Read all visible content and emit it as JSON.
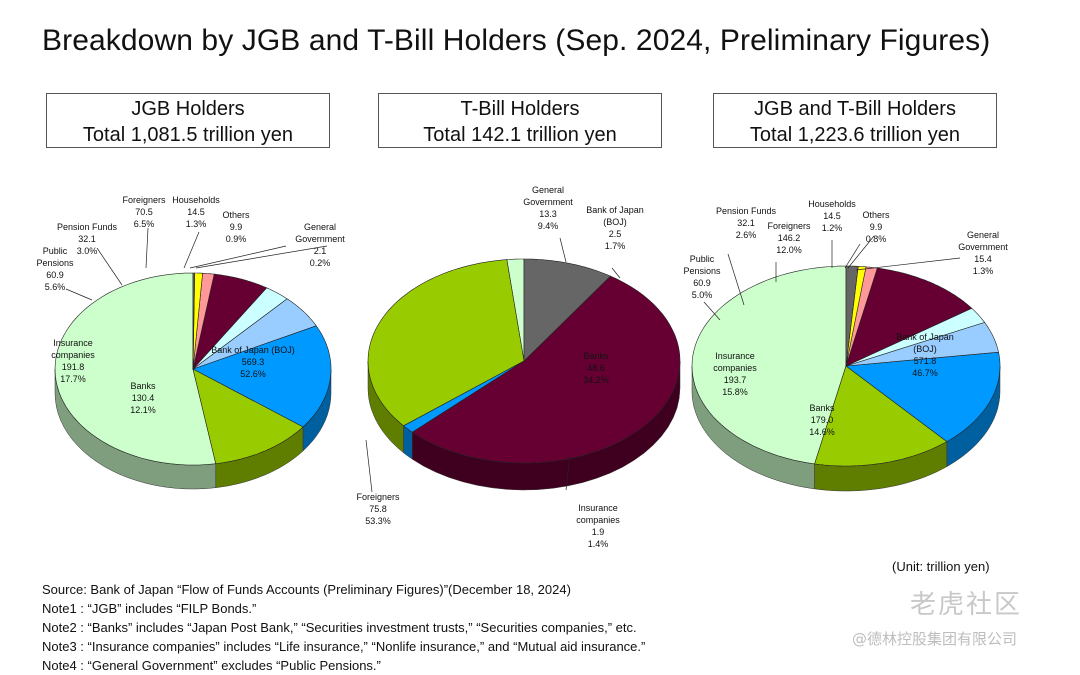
{
  "title": "Breakdown by JGB and T-Bill Holders (Sep. 2024, Preliminary Figures)",
  "boxes": [
    {
      "line1": "JGB Holders",
      "line2": "Total 1,081.5 trillion yen"
    },
    {
      "line1": "T-Bill Holders",
      "line2": "Total 142.1 trillion yen"
    },
    {
      "line1": "JGB and T-Bill Holders",
      "line2": "Total 1,223.6 trillion yen"
    }
  ],
  "unit": "(Unit: trillion yen)",
  "notes": [
    "Source: Bank of Japan “Flow of Funds Accounts (Preliminary Figures)”(December 18, 2024)",
    "Note1 : “JGB” includes “FILP Bonds.”",
    "Note2 : “Banks” includes “Japan Post Bank,” “Securities investment trusts,” “Securities companies,” etc.",
    "Note3 : “Insurance companies” includes “Life insurance,” “Nonlife insurance,” and “Mutual aid insurance.”",
    "Note4 : “General Government” excludes “Public Pensions.”"
  ],
  "watermark": {
    "brand": "老虎社区",
    "handle": "@德林控股集团有限公司"
  },
  "colors": {
    "boj": "#ccffcc",
    "banks": "#99cc00",
    "insurance": "#0099ff",
    "public_pensions": "#99ccff",
    "pension_funds": "#ccffff",
    "foreigners": "#660033",
    "households": "#ff9999",
    "others": "#ffff00",
    "general_government": "#666666"
  },
  "chart_data": [
    {
      "type": "pie",
      "title": "JGB Holders",
      "total": "1,081.5",
      "slices": [
        {
          "key": "boj",
          "lines": [
            "Bank of Japan (BOJ)",
            "569.3",
            "52.6%"
          ],
          "value": 569.3,
          "percent": 52.6
        },
        {
          "key": "banks",
          "lines": [
            "Banks",
            "130.4",
            "12.1%"
          ],
          "value": 130.4,
          "percent": 12.1
        },
        {
          "key": "insurance",
          "lines": [
            "Insurance",
            "companies",
            "191.8",
            "17.7%"
          ],
          "value": 191.8,
          "percent": 17.7
        },
        {
          "key": "public_pensions",
          "lines": [
            "Public",
            "Pensions",
            "60.9",
            "5.6%"
          ],
          "value": 60.9,
          "percent": 5.6
        },
        {
          "key": "pension_funds",
          "lines": [
            "Pension Funds",
            "32.1",
            "3.0%"
          ],
          "value": 32.1,
          "percent": 3.0
        },
        {
          "key": "foreigners",
          "lines": [
            "Foreigners",
            "70.5",
            "6.5%"
          ],
          "value": 70.5,
          "percent": 6.5
        },
        {
          "key": "households",
          "lines": [
            "Households",
            "14.5",
            "1.3%"
          ],
          "value": 14.5,
          "percent": 1.3
        },
        {
          "key": "others",
          "lines": [
            "Others",
            "9.9",
            "0.9%"
          ],
          "value": 9.9,
          "percent": 0.9
        },
        {
          "key": "general_government",
          "lines": [
            "General",
            "Government",
            "2.1",
            "0.2%"
          ],
          "value": 2.1,
          "percent": 0.2
        }
      ]
    },
    {
      "type": "pie",
      "title": "T-Bill Holders",
      "total": "142.1",
      "slices": [
        {
          "key": "boj",
          "lines": [
            "Bank of Japan",
            "(BOJ)",
            "2.5",
            "1.7%"
          ],
          "value": 2.5,
          "percent": 1.7
        },
        {
          "key": "banks",
          "lines": [
            "Banks",
            "48.6",
            "34.2%"
          ],
          "value": 48.6,
          "percent": 34.2
        },
        {
          "key": "insurance",
          "lines": [
            "Insurance",
            "companies",
            "1.9",
            "1.4%"
          ],
          "value": 1.9,
          "percent": 1.4
        },
        {
          "key": "foreigners",
          "lines": [
            "Foreigners",
            "75.8",
            "53.3%"
          ],
          "value": 75.8,
          "percent": 53.3
        },
        {
          "key": "general_government",
          "lines": [
            "General",
            "Government",
            "13.3",
            "9.4%"
          ],
          "value": 13.3,
          "percent": 9.4
        }
      ]
    },
    {
      "type": "pie",
      "title": "JGB and T-Bill Holders",
      "total": "1,223.6",
      "slices": [
        {
          "key": "boj",
          "lines": [
            "Bank of Japan",
            "(BOJ)",
            "571.8",
            "46.7%"
          ],
          "value": 571.8,
          "percent": 46.7
        },
        {
          "key": "banks",
          "lines": [
            "Banks",
            "179.0",
            "14.6%"
          ],
          "value": 179.0,
          "percent": 14.6
        },
        {
          "key": "insurance",
          "lines": [
            "Insurance",
            "companies",
            "193.7",
            "15.8%"
          ],
          "value": 193.7,
          "percent": 15.8
        },
        {
          "key": "public_pensions",
          "lines": [
            "Public",
            "Pensions",
            "60.9",
            "5.0%"
          ],
          "value": 60.9,
          "percent": 5.0
        },
        {
          "key": "pension_funds",
          "lines": [
            "Pension Funds",
            "32.1",
            "2.6%"
          ],
          "value": 32.1,
          "percent": 2.6
        },
        {
          "key": "foreigners",
          "lines": [
            "Foreigners",
            "146.2",
            "12.0%"
          ],
          "value": 146.2,
          "percent": 12.0
        },
        {
          "key": "households",
          "lines": [
            "Households",
            "14.5",
            "1.2%"
          ],
          "value": 14.5,
          "percent": 1.2
        },
        {
          "key": "others",
          "lines": [
            "Others",
            "9.9",
            "0.8%"
          ],
          "value": 9.9,
          "percent": 0.8
        },
        {
          "key": "general_government",
          "lines": [
            "General",
            "Government",
            "15.4",
            "1.3%"
          ],
          "value": 15.4,
          "percent": 1.3
        }
      ]
    }
  ]
}
